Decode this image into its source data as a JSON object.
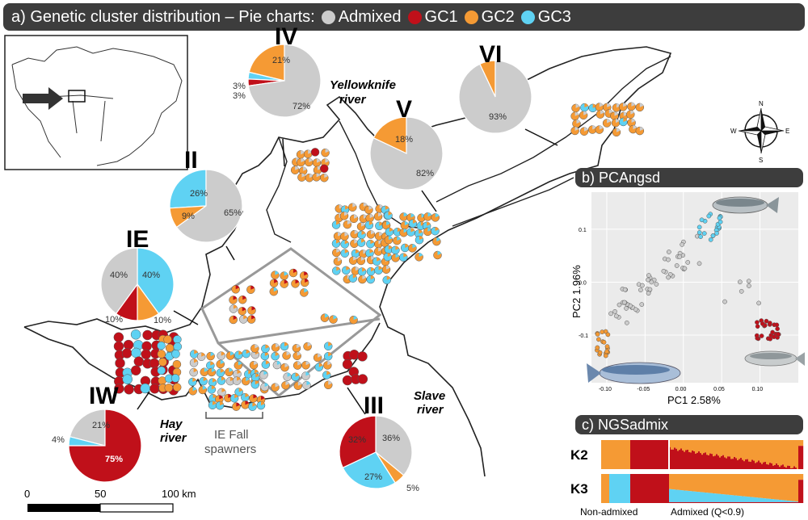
{
  "title_prefix": "a) Genetic cluster distribution – Pie charts:",
  "legend": [
    {
      "label": "Admixed",
      "color": "#cccccc"
    },
    {
      "label": "GC1",
      "color": "#c0101a"
    },
    {
      "label": "GC2",
      "color": "#f59a34"
    },
    {
      "label": "GC3",
      "color": "#5fd2f3"
    }
  ],
  "pies": [
    {
      "id": "IV",
      "label": "IV",
      "values": {
        "admixed": 72,
        "gc1": 3,
        "gc2": 21,
        "gc3": 3
      },
      "labels": {
        "admixed": "72%",
        "gc1": "3%",
        "gc2": "21%",
        "gc3": "3%"
      }
    },
    {
      "id": "V",
      "label": "V",
      "values": {
        "admixed": 82,
        "gc1": 0,
        "gc2": 18,
        "gc3": 0
      },
      "labels": {
        "admixed": "82%",
        "gc2": "18%"
      }
    },
    {
      "id": "VI",
      "label": "VI",
      "values": {
        "admixed": 93,
        "gc1": 0,
        "gc2": 7,
        "gc3": 0
      },
      "labels": {
        "admixed": "93%"
      }
    },
    {
      "id": "II",
      "label": "II",
      "values": {
        "admixed": 65,
        "gc1": 0,
        "gc2": 9,
        "gc3": 26
      },
      "labels": {
        "admixed": "65%",
        "gc2": "9%",
        "gc3": "26%"
      }
    },
    {
      "id": "IE",
      "label": "IE",
      "values": {
        "admixed": 40,
        "gc1": 10,
        "gc2": 10,
        "gc3": 40
      },
      "labels": {
        "admixed": "40%",
        "gc1": "10%",
        "gc2": "10%",
        "gc3": "40%"
      }
    },
    {
      "id": "IW",
      "label": "IW",
      "values": {
        "admixed": 21,
        "gc1": 75,
        "gc2": 0,
        "gc3": 4
      },
      "labels": {
        "admixed": "21%",
        "gc1": "75%",
        "gc3": "4%"
      }
    },
    {
      "id": "III",
      "label": "III",
      "values": {
        "admixed": 36,
        "gc1": 32,
        "gc2": 5,
        "gc3": 27
      },
      "labels": {
        "admixed": "36%",
        "gc1": "32%",
        "gc2": "5%",
        "gc3": "27%"
      }
    }
  ],
  "rivers": {
    "yellowknife": "Yellowknife\nriver",
    "slave": "Slave\nriver",
    "hay": "Hay\nriver"
  },
  "fall_spawners": "IE Fall\nspawners",
  "scale": {
    "zero": "0",
    "fifty": "50",
    "hundred": "100 km"
  },
  "compass": {
    "n": "N",
    "s": "S",
    "e": "E",
    "w": "W"
  },
  "pca": {
    "title": "b) PCAngsd",
    "xlabel": "PC1 2.58%",
    "ylabel": "PC2 1.96%",
    "xticks": [
      "-0.10",
      "-0.05",
      "0.00",
      "0.05",
      "0.10"
    ],
    "yticks": [
      "0.1",
      "0.0",
      "-0.1"
    ]
  },
  "ngs": {
    "title": "c) NGSadmix",
    "k2": "K2",
    "k3": "K3",
    "nonadmixed": "Non-admixed",
    "admixed": "Admixed (Q<0.9)"
  }
}
